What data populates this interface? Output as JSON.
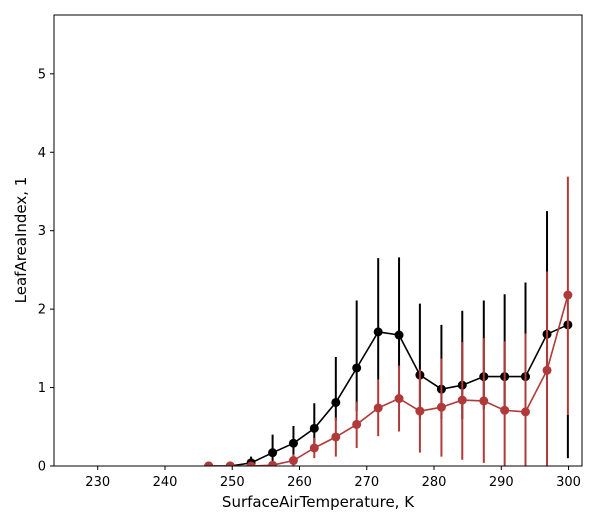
{
  "chart_data": {
    "type": "line",
    "xlabel": "SurfaceAirTemperature,  K",
    "ylabel": "LeafAreaIndex,  1",
    "xlim": [
      223.5,
      302
    ],
    "ylim": [
      0,
      5.75
    ],
    "x_ticks": [
      230,
      240,
      250,
      260,
      270,
      280,
      290,
      300
    ],
    "y_ticks": [
      0,
      1,
      2,
      3,
      4,
      5
    ],
    "grid": false,
    "series": [
      {
        "color": "#000000",
        "x": [
          246.5,
          249.7,
          252.8,
          256.0,
          259.1,
          262.2,
          265.4,
          268.5,
          271.7,
          274.8,
          277.9,
          281.1,
          284.2,
          287.4,
          290.5,
          293.6,
          296.8,
          299.9
        ],
        "y": [
          0.0,
          0.0,
          0.04,
          0.17,
          0.29,
          0.48,
          0.81,
          1.25,
          1.71,
          1.67,
          1.16,
          0.98,
          1.03,
          1.14,
          1.14,
          1.14,
          1.68,
          1.8
        ],
        "err_low": [
          0.0,
          0.0,
          0.0,
          0.0,
          0.12,
          0.22,
          0.58,
          0.7,
          1.1,
          1.25,
          0.6,
          0.6,
          0.6,
          0.72,
          0.72,
          0.72,
          1.1,
          0.1
        ],
        "err_high": [
          0.0,
          0.0,
          0.12,
          0.4,
          0.51,
          0.8,
          1.39,
          2.11,
          2.65,
          2.66,
          2.07,
          1.8,
          1.98,
          2.11,
          2.19,
          2.34,
          3.25,
          0.65
        ]
      },
      {
        "color": "#b03a3a",
        "x": [
          246.5,
          249.7,
          252.8,
          256.0,
          259.1,
          262.2,
          265.4,
          268.5,
          271.7,
          274.8,
          277.9,
          281.1,
          284.2,
          287.4,
          290.5,
          293.6,
          296.8,
          299.9
        ],
        "y": [
          0.0,
          0.0,
          0.0,
          0.01,
          0.07,
          0.23,
          0.37,
          0.53,
          0.74,
          0.86,
          0.7,
          0.75,
          0.84,
          0.83,
          0.71,
          0.69,
          1.22,
          2.18
        ],
        "err_low": [
          0.0,
          0.0,
          0.0,
          0.0,
          0.0,
          0.1,
          0.12,
          0.23,
          0.38,
          0.44,
          0.17,
          0.12,
          0.08,
          0.04,
          0.0,
          0.0,
          0.0,
          0.65
        ],
        "err_high": [
          0.0,
          0.0,
          0.0,
          0.02,
          0.15,
          0.36,
          0.62,
          0.82,
          1.1,
          1.28,
          1.23,
          1.37,
          1.58,
          1.63,
          1.59,
          1.69,
          2.48,
          3.69
        ]
      }
    ]
  }
}
